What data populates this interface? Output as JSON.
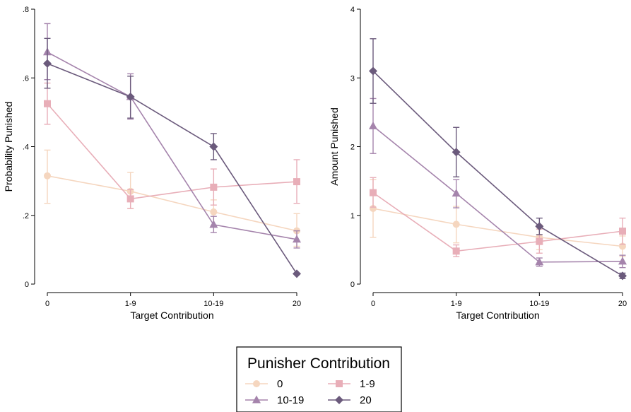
{
  "chart_data": [
    {
      "type": "line",
      "title": "",
      "xlabel": "Target Contribution",
      "ylabel": "Probability Punished",
      "categories": [
        "0",
        "1-9",
        "10-19",
        "20"
      ],
      "ylim": [
        0,
        0.8
      ],
      "yticks": [
        0,
        0.2,
        0.4,
        0.6,
        0.8
      ],
      "ytick_labels": [
        "0",
        ".2",
        ".4",
        ".6",
        ".8"
      ],
      "grid": false,
      "series": [
        {
          "name": "0",
          "color": "#f5d6bf",
          "marker": "circle",
          "values": [
            0.315,
            0.27,
            0.21,
            0.155
          ],
          "err_low": [
            0.235,
            0.22,
            0.17,
            0.11
          ],
          "err_high": [
            0.39,
            0.325,
            0.245,
            0.205
          ]
        },
        {
          "name": "1-9",
          "color": "#e8aeb8",
          "marker": "square",
          "values": [
            0.525,
            0.248,
            0.282,
            0.298
          ],
          "err_low": [
            0.465,
            0.22,
            0.23,
            0.235
          ],
          "err_high": [
            0.585,
            0.275,
            0.335,
            0.362
          ]
        },
        {
          "name": "10-19",
          "color": "#a584ac",
          "marker": "triangle",
          "values": [
            0.675,
            0.545,
            0.173,
            0.13
          ],
          "err_low": [
            0.595,
            0.48,
            0.15,
            0.105
          ],
          "err_high": [
            0.758,
            0.612,
            0.197,
            0.155
          ]
        },
        {
          "name": "20",
          "color": "#6b5a7c",
          "marker": "diamond",
          "values": [
            0.642,
            0.545,
            0.4,
            0.03
          ],
          "err_low": [
            0.57,
            0.483,
            0.362,
            0.03
          ],
          "err_high": [
            0.715,
            0.605,
            0.438,
            0.03
          ]
        }
      ]
    },
    {
      "type": "line",
      "title": "",
      "xlabel": "Target Contribution",
      "ylabel": "Amount Punished",
      "categories": [
        "0",
        "1-9",
        "10-19",
        "20"
      ],
      "ylim": [
        0,
        4
      ],
      "yticks": [
        0,
        1,
        2,
        3,
        4
      ],
      "ytick_labels": [
        "0",
        "1",
        "2",
        "3",
        "4"
      ],
      "grid": false,
      "series": [
        {
          "name": "0",
          "color": "#f5d6bf",
          "marker": "circle",
          "values": [
            1.1,
            0.87,
            0.68,
            0.55
          ],
          "err_low": [
            0.68,
            0.6,
            0.5,
            0.4
          ],
          "err_high": [
            1.52,
            1.13,
            0.86,
            0.7
          ]
        },
        {
          "name": "1-9",
          "color": "#e8aeb8",
          "marker": "square",
          "values": [
            1.33,
            0.48,
            0.62,
            0.77
          ],
          "err_low": [
            1.12,
            0.4,
            0.45,
            0.58
          ],
          "err_high": [
            1.55,
            0.57,
            0.8,
            0.96
          ]
        },
        {
          "name": "10-19",
          "color": "#a584ac",
          "marker": "triangle",
          "values": [
            2.3,
            1.32,
            0.32,
            0.33
          ],
          "err_low": [
            1.9,
            1.11,
            0.26,
            0.24
          ],
          "err_high": [
            2.7,
            1.52,
            0.38,
            0.42
          ]
        },
        {
          "name": "20",
          "color": "#6b5a7c",
          "marker": "diamond",
          "values": [
            3.1,
            1.92,
            0.84,
            0.12
          ],
          "err_low": [
            2.63,
            1.56,
            0.72,
            0.08
          ],
          "err_high": [
            3.57,
            2.28,
            0.96,
            0.16
          ]
        }
      ]
    }
  ],
  "legend": {
    "title": "Punisher Contribution",
    "placement": "bottom-center",
    "items": [
      {
        "label": "0",
        "marker": "circle",
        "color": "#f5d6bf"
      },
      {
        "label": "1-9",
        "marker": "square",
        "color": "#e8aeb8"
      },
      {
        "label": "10-19",
        "marker": "triangle",
        "color": "#a584ac"
      },
      {
        "label": "20",
        "marker": "diamond",
        "color": "#6b5a7c"
      }
    ]
  }
}
